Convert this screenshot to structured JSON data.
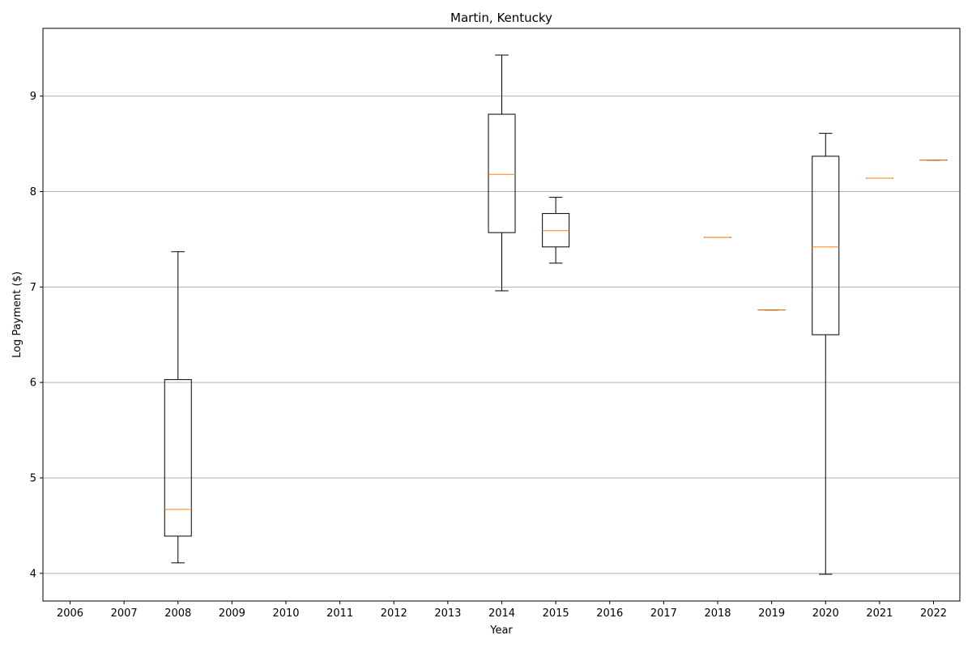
{
  "chart_data": {
    "type": "boxplot",
    "title": "Martin, Kentucky",
    "xlabel": "Year",
    "ylabel": "Log Payment ($)",
    "categories": [
      "2006",
      "2007",
      "2008",
      "2009",
      "2010",
      "2011",
      "2012",
      "2013",
      "2014",
      "2015",
      "2016",
      "2017",
      "2018",
      "2019",
      "2020",
      "2021",
      "2022"
    ],
    "yticks": [
      4,
      5,
      6,
      7,
      8,
      9
    ],
    "ylim": [
      3.71,
      9.71
    ],
    "grid": "y",
    "boxes": [
      {
        "category": "2008",
        "whisker_low": 4.11,
        "q1": 4.39,
        "median": 4.67,
        "q3": 6.03,
        "whisker_high": 7.37
      },
      {
        "category": "2014",
        "whisker_low": 6.96,
        "q1": 7.57,
        "median": 8.18,
        "q3": 8.81,
        "whisker_high": 9.43
      },
      {
        "category": "2015",
        "whisker_low": 7.25,
        "q1": 7.42,
        "median": 7.59,
        "q3": 7.77,
        "whisker_high": 7.94
      },
      {
        "category": "2018",
        "whisker_low": 7.52,
        "q1": 7.52,
        "median": 7.52,
        "q3": 7.52,
        "whisker_high": 7.52
      },
      {
        "category": "2019",
        "whisker_low": 6.76,
        "q1": 6.76,
        "median": 6.76,
        "q3": 6.76,
        "whisker_high": 6.76
      },
      {
        "category": "2020",
        "whisker_low": 3.99,
        "q1": 6.5,
        "median": 7.42,
        "q3": 8.37,
        "whisker_high": 8.61
      },
      {
        "category": "2021",
        "whisker_low": 8.14,
        "q1": 8.14,
        "median": 8.14,
        "q3": 8.14,
        "whisker_high": 8.14
      },
      {
        "category": "2022",
        "whisker_low": 8.33,
        "q1": 8.33,
        "median": 8.33,
        "q3": 8.33,
        "whisker_high": 8.33
      }
    ],
    "colors": {
      "box": "#000000",
      "median": "#ff7f0e",
      "grid": "#b0b0b0"
    }
  }
}
